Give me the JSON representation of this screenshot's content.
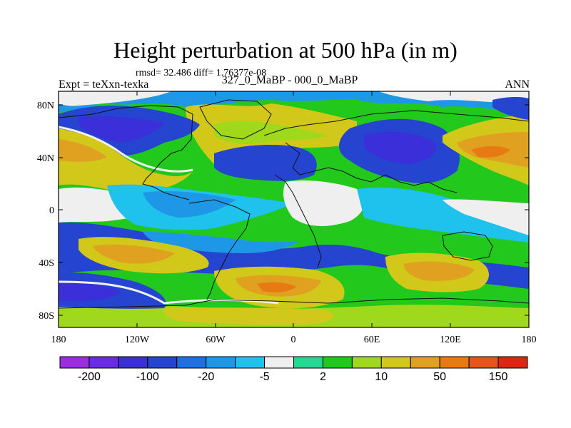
{
  "title": "Height perturbation at 500 hPa (in m)",
  "stats": "rmsd= 32.486 diff= 1.76377e-08",
  "left_label": "Expt = teXxn-texka",
  "center_label": "327_0_MaBP - 000_0_MaBP",
  "right_label": "ANN",
  "lat_ticks": [
    "80N",
    "40N",
    "0",
    "40S",
    "80S"
  ],
  "lon_ticks": [
    "180",
    "120W",
    "60W",
    "0",
    "60E",
    "120E",
    "180"
  ],
  "colorbar": {
    "labels": [
      "-200",
      "-100",
      "-20",
      "-5",
      "2",
      "10",
      "50",
      "150"
    ],
    "colors": [
      "#9B2FE0",
      "#6A2BE8",
      "#3A2FD8",
      "#2545D0",
      "#1F6FE0",
      "#1E98E6",
      "#1EC2EC",
      "#EFEFEF",
      "#22D893",
      "#22C81C",
      "#A0D81C",
      "#D2C81A",
      "#E0A020",
      "#E87A14",
      "#E8551C",
      "#E02414"
    ]
  },
  "field_colors": {
    "neg_strong": "#3A2FD8",
    "neg_mid": "#2545D0",
    "neg_light": "#1F6FE0",
    "neg_pale": "#1E98E6",
    "neg_cyan": "#1EC2EC",
    "zero": "#EFEFEF",
    "pos_pale": "#22D893",
    "pos_green": "#22C81C",
    "pos_yellowgreen": "#A0D81C",
    "pos_yellow": "#D2C81A",
    "pos_orange": "#E0A020",
    "pos_dark_orange": "#E87A14"
  }
}
